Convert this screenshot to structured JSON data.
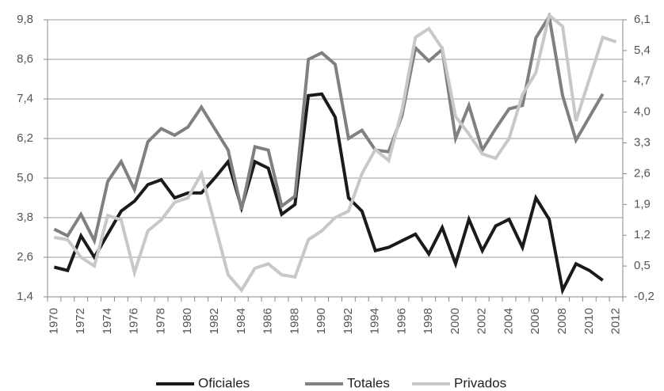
{
  "chart_data": {
    "type": "line",
    "categories": [
      "1970",
      null,
      "1972",
      null,
      "1974",
      null,
      "1976",
      null,
      "1978",
      null,
      "1980",
      null,
      "1982",
      null,
      "1984",
      null,
      "1986",
      null,
      "1988",
      null,
      "1990",
      null,
      "1992",
      null,
      "1994",
      null,
      "1996",
      null,
      "1998",
      null,
      "2000",
      null,
      "2002",
      null,
      "2004",
      null,
      "2006",
      null,
      "2008",
      null,
      "2010",
      null,
      "2012"
    ],
    "series": [
      {
        "name": "Oficiales",
        "color": "#1a1a1a",
        "values": [
          2.3,
          2.2,
          3.25,
          2.6,
          3.3,
          4.0,
          4.3,
          4.8,
          4.95,
          4.4,
          4.55,
          4.55,
          5.0,
          5.5,
          4.1,
          5.5,
          5.3,
          3.9,
          4.2,
          7.5,
          7.55,
          6.85,
          4.4,
          4.0,
          2.8,
          2.9,
          3.1,
          3.3,
          2.7,
          3.5,
          2.4,
          3.75,
          2.8,
          3.55,
          3.75,
          2.9,
          4.4,
          3.75,
          1.6,
          2.4,
          2.2,
          1.9,
          null
        ]
      },
      {
        "name": "Totales",
        "color": "#808080",
        "values": [
          3.45,
          3.25,
          3.9,
          3.1,
          4.9,
          5.5,
          4.65,
          6.1,
          6.5,
          6.3,
          6.55,
          7.15,
          6.5,
          5.85,
          4.05,
          5.95,
          5.85,
          4.15,
          4.45,
          8.6,
          8.8,
          8.45,
          6.2,
          6.45,
          5.85,
          5.8,
          6.9,
          8.95,
          8.55,
          8.9,
          6.2,
          7.2,
          5.85,
          6.5,
          7.1,
          7.2,
          9.25,
          9.9,
          7.5,
          6.15,
          6.85,
          7.55,
          null
        ]
      },
      {
        "name": "Privados",
        "color": "#c8c8c8",
        "axis": "y2",
        "values": [
          1.15,
          1.1,
          0.7,
          0.5,
          1.65,
          1.55,
          0.35,
          1.3,
          1.55,
          1.95,
          2.05,
          2.6,
          1.45,
          0.3,
          -0.05,
          0.45,
          0.55,
          0.3,
          0.25,
          1.1,
          1.3,
          1.6,
          1.75,
          2.6,
          3.15,
          2.9,
          4.05,
          5.7,
          5.9,
          5.45,
          3.9,
          3.5,
          3.05,
          2.95,
          3.4,
          4.4,
          4.9,
          6.2,
          5.95,
          3.8,
          4.75,
          5.7,
          5.6
        ]
      }
    ],
    "ylim": [
      1.4,
      9.8
    ],
    "yticks": [
      {
        "value": 1.4,
        "label": "1,4"
      },
      {
        "value": 2.6,
        "label": "2,6"
      },
      {
        "value": 3.8,
        "label": "3,8"
      },
      {
        "value": 5.0,
        "label": "5,0"
      },
      {
        "value": 6.2,
        "label": "6,2"
      },
      {
        "value": 7.4,
        "label": "7,4"
      },
      {
        "value": 8.6,
        "label": "8,6"
      },
      {
        "value": 9.8,
        "label": "9,8"
      }
    ],
    "y2lim": [
      -0.2,
      6.1
    ],
    "y2ticks": [
      {
        "value": -0.2,
        "label": "-0,2"
      },
      {
        "value": 0.5,
        "label": "0,5"
      },
      {
        "value": 1.2,
        "label": "1,2"
      },
      {
        "value": 1.9,
        "label": "1,9"
      },
      {
        "value": 2.6,
        "label": "2,6"
      },
      {
        "value": 3.3,
        "label": "3,3"
      },
      {
        "value": 4.0,
        "label": "4,0"
      },
      {
        "value": 4.7,
        "label": "4,7"
      },
      {
        "value": 5.4,
        "label": "5,4"
      },
      {
        "value": 6.1,
        "label": "6,1"
      }
    ],
    "grid": true,
    "legend": "bottom"
  }
}
